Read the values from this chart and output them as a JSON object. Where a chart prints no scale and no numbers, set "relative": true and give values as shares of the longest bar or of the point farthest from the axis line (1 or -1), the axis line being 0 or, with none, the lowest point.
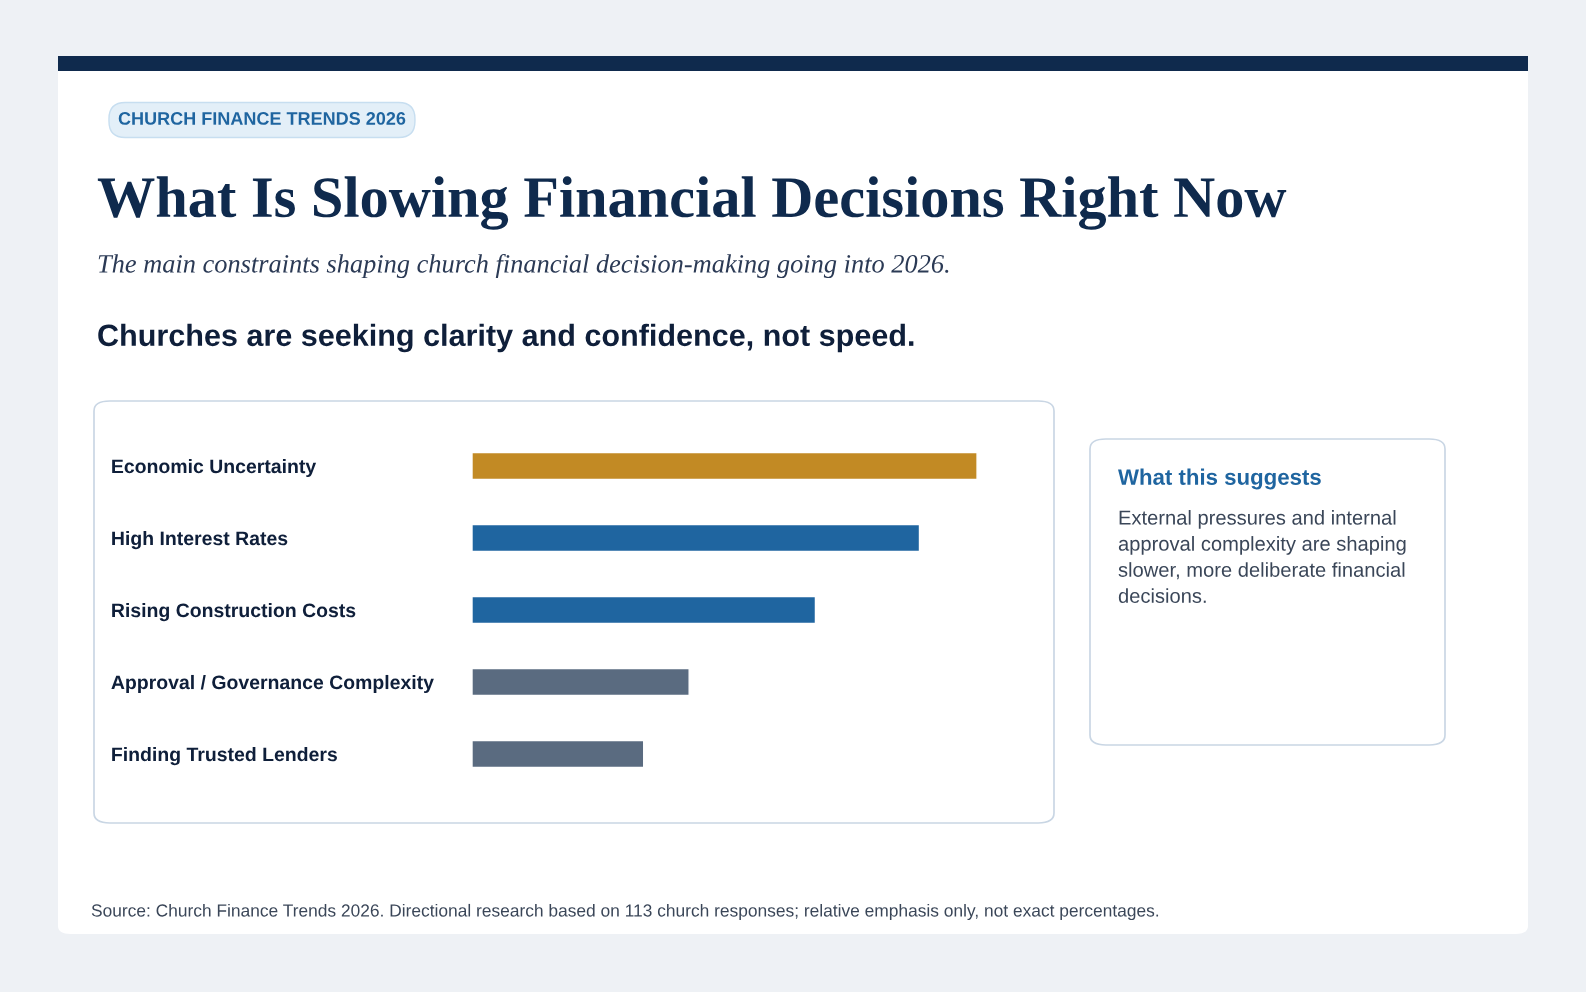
{
  "chart_data": {
    "type": "bar",
    "orientation": "horizontal",
    "relative": true,
    "title": "What Is Slowing Financial Decisions Right Now",
    "subtitle": "The main constraints shaping church financial decision-making going into 2026.",
    "categories": [
      "Economic Uncertainty",
      "High Interest Rates",
      "Rising Construction Costs",
      "Approval / Governance Complexity",
      "Finding Trusted Lenders"
    ],
    "values": [
      1,
      0.886,
      0.68,
      0.43,
      0.34
    ],
    "colors": [
      "#c28a24",
      "#1f65a0",
      "#1f65a0",
      "#5a6b80",
      "#5a6b80"
    ],
    "annotations": [
      "CHURCH FINANCE TRENDS 2026",
      "Churches are seeking clarity and confidence, not speed.",
      "What this suggests",
      "External pressures and internal approval complexity are shaping slower, more deliberate financial decisions.",
      "Source: Church Finance Trends 2026. Directional research based on 113 church responses; relative emphasis only, not exact percentages."
    ]
  }
}
